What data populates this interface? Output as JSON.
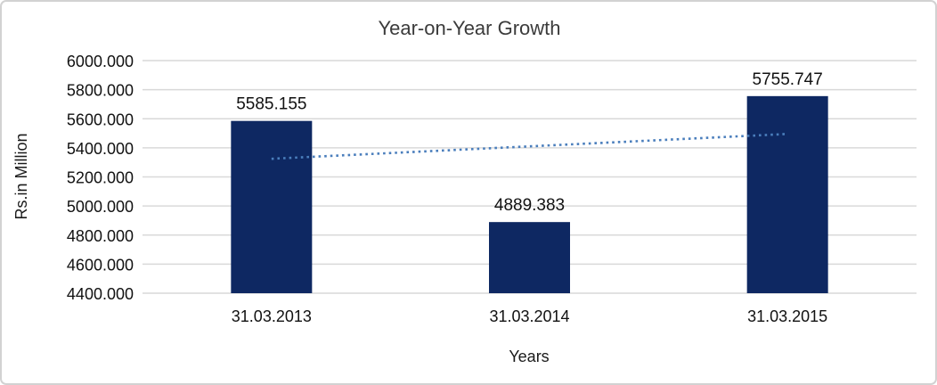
{
  "chart_data": {
    "type": "bar",
    "title": "Year-on-Year Growth",
    "categories": [
      "31.03.2013",
      "31.03.2014",
      "31.03.2015"
    ],
    "values": [
      5585.155,
      4889.383,
      5755.747
    ],
    "data_labels": [
      "5585.155",
      "4889.383",
      "5755.747"
    ],
    "xlabel": "Years",
    "ylabel": "Rs.in Million",
    "ylim": [
      4400,
      6000
    ],
    "ytick_step": 200,
    "ytick_labels": [
      "4400.000",
      "4600.000",
      "4800.000",
      "5000.000",
      "5200.000",
      "5400.000",
      "5600.000",
      "5800.000",
      "6000.000"
    ],
    "grid": true,
    "legend_position": "none",
    "trendline": {
      "type": "linear",
      "style": "dotted",
      "start_value": 5324.8,
      "end_value": 5495.4
    }
  },
  "colors": {
    "bar": "#0e2862",
    "trendline": "#4a7ebc",
    "gridline": "#d9d9d9",
    "chart_border": "#d2d2d2",
    "background": "#ffffff",
    "title_text": "#3b3b3b",
    "axis_text": "#111111"
  }
}
